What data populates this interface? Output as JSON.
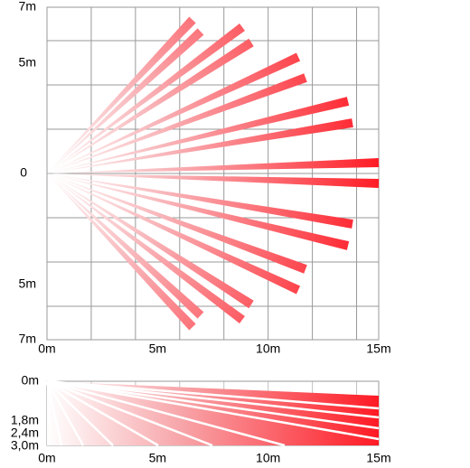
{
  "top": {
    "y_labels": [
      "7m",
      "5m",
      "0",
      "5m",
      "7m"
    ],
    "x_labels": [
      "0m",
      "5m",
      "10m",
      "15m"
    ]
  },
  "side": {
    "y_labels": [
      "0m",
      "1,8m",
      "2,4m",
      "3,0m"
    ],
    "x_labels": [
      "0m",
      "5m",
      "10m",
      "15m"
    ]
  }
}
